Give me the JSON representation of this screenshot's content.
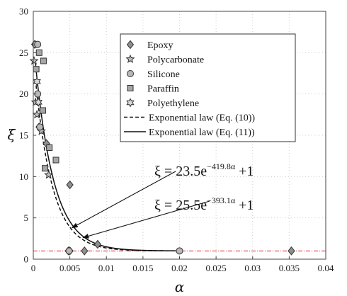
{
  "chart_data": {
    "type": "scatter",
    "title": "",
    "xlabel": "α",
    "ylabel": "ξ",
    "xlim": [
      0,
      0.04
    ],
    "ylim": [
      0,
      30
    ],
    "x_ticks": [
      0,
      0.005,
      0.01,
      0.015,
      0.02,
      0.025,
      0.03,
      0.035,
      0.04
    ],
    "x_tick_labels": [
      "0",
      "0.005",
      "0.01",
      "0.015",
      "0.02",
      "0.025",
      "0.03",
      "0.035",
      "0.04"
    ],
    "y_ticks": [
      0,
      5,
      10,
      15,
      20,
      25,
      30
    ],
    "y_tick_labels": [
      "0",
      "5",
      "10",
      "15",
      "20",
      "25",
      "30"
    ],
    "grid": true,
    "legend_position": "top-right",
    "series": [
      {
        "name": "Epoxy",
        "marker": "diamond",
        "color": "#8f8f8f",
        "points": [
          [
            0.0002,
            26.0
          ],
          [
            0.0008,
            16.0
          ],
          [
            0.0018,
            14.0
          ],
          [
            0.005,
            9.0
          ],
          [
            0.0048,
            1.0
          ],
          [
            0.005,
            1.0
          ],
          [
            0.007,
            1.0
          ],
          [
            0.0088,
            1.8
          ],
          [
            0.0353,
            1.0
          ]
        ]
      },
      {
        "name": "Polycarbonate",
        "marker": "star",
        "color": "#bdbdbd",
        "points": [
          [
            0.0001,
            24.0
          ],
          [
            0.0003,
            19.0
          ],
          [
            0.0005,
            17.5
          ],
          [
            0.0011,
            15.5
          ],
          [
            0.0021,
            10.2
          ]
        ]
      },
      {
        "name": "Silicone",
        "marker": "circle",
        "color": "#b8b8b8",
        "points": [
          [
            0.0003,
            26.0
          ],
          [
            0.0006,
            26.0
          ],
          [
            0.0006,
            20.0
          ],
          [
            0.0009,
            16.0
          ],
          [
            0.0049,
            1.0
          ],
          [
            0.02,
            1.0
          ]
        ]
      },
      {
        "name": "Paraffin",
        "marker": "square",
        "color": "#a6a6a6",
        "points": [
          [
            0.0004,
            23.0
          ],
          [
            0.0008,
            25.0
          ],
          [
            0.0014,
            24.0
          ],
          [
            0.0013,
            18.0
          ],
          [
            0.0016,
            11.0
          ],
          [
            0.0022,
            13.5
          ],
          [
            0.0031,
            12.0
          ]
        ]
      },
      {
        "name": "Polyethylene",
        "marker": "hexstar",
        "color": "#d9d9d9",
        "points": [
          [
            0.0005,
            21.5
          ],
          [
            0.0007,
            19.0
          ]
        ]
      },
      {
        "name": "Exponential law (Eq. (10))",
        "style": "dashed",
        "color": "#111111",
        "equation": {
          "a": 23.5,
          "b": 419.8,
          "c": 1
        }
      },
      {
        "name": "Exponential law (Eq. (11))",
        "style": "solid",
        "color": "#111111",
        "equation": {
          "a": 25.5,
          "b": 393.1,
          "c": 1
        }
      }
    ],
    "reference_line": {
      "y": 1,
      "style": "dash-dot",
      "color": "#e0202a"
    },
    "annotations": [
      {
        "prefix": "ξ = 23.5e",
        "exponent": "−419.8α",
        "suffix": " +1",
        "target": [
          0.0053,
          3.8
        ]
      },
      {
        "prefix": "ξ = 25.5e",
        "exponent": "−393.1α",
        "suffix": " +1",
        "target": [
          0.0068,
          2.6
        ]
      }
    ]
  }
}
